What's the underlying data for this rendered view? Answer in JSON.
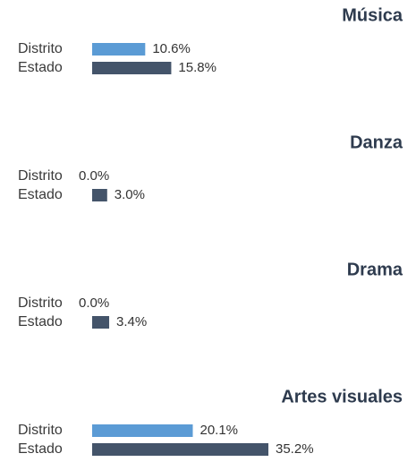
{
  "chart_data": [
    {
      "type": "bar",
      "title": "Música",
      "categories": [
        "Distrito",
        "Estado"
      ],
      "values": [
        10.6,
        15.8
      ],
      "value_labels": [
        "10.6%",
        "15.8%"
      ],
      "colors": [
        "#5b9bd5",
        "#44546a"
      ]
    },
    {
      "type": "bar",
      "title": "Danza",
      "categories": [
        "Distrito",
        "Estado"
      ],
      "values": [
        0.0,
        3.0
      ],
      "value_labels": [
        "0.0%",
        "3.0%"
      ],
      "colors": [
        "#5b9bd5",
        "#44546a"
      ]
    },
    {
      "type": "bar",
      "title": "Drama",
      "categories": [
        "Distrito",
        "Estado"
      ],
      "values": [
        0.0,
        3.4
      ],
      "value_labels": [
        "0.0%",
        "3.4%"
      ],
      "colors": [
        "#5b9bd5",
        "#44546a"
      ]
    },
    {
      "type": "bar",
      "title": "Artes visuales",
      "categories": [
        "Distrito",
        "Estado"
      ],
      "values": [
        20.1,
        35.2
      ],
      "value_labels": [
        "20.1%",
        "35.2%"
      ],
      "colors": [
        "#5b9bd5",
        "#44546a"
      ]
    }
  ]
}
